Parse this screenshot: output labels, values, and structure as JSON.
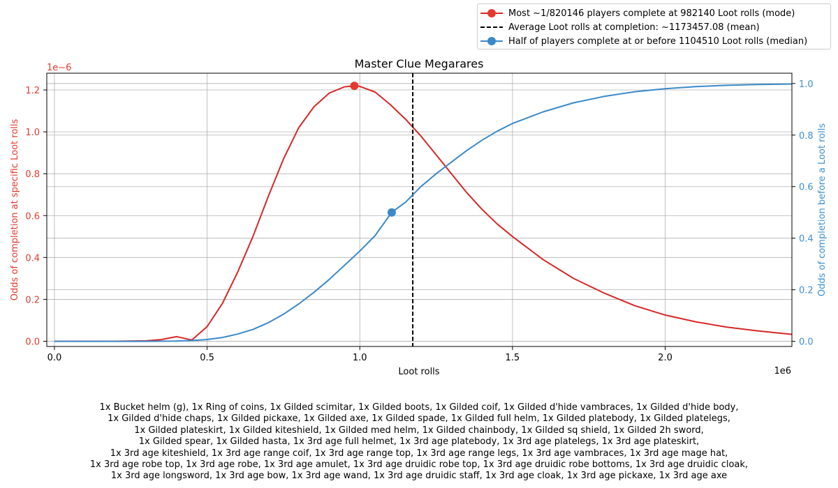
{
  "chart_data": {
    "type": "line",
    "title": "Master Clue Megarares",
    "xlabel": "Loot rolls",
    "x_offset_text": "1e6",
    "xlim": [
      -25000,
      2415000
    ],
    "x_ticks": [
      0,
      500000,
      1000000,
      1500000,
      2000000
    ],
    "x_tick_labels": [
      "0.0",
      "0.5",
      "1.0",
      "1.5",
      "2.0"
    ],
    "left_axis": {
      "label": "Odds of completion at specific Loot rolls",
      "offset_text": "1e−6",
      "color": "#e23b2e",
      "ylim": [
        -2.5e-08,
        1.28e-06
      ],
      "ticks": [
        0,
        2e-07,
        4e-07,
        6e-07,
        8e-07,
        1e-06,
        1.2e-06
      ],
      "tick_labels": [
        "0.0",
        "0.2",
        "0.4",
        "0.6",
        "0.8",
        "1.0",
        "1.2"
      ]
    },
    "right_axis": {
      "label": "Odds of completion before a Loot rolls",
      "color": "#3f8fd0",
      "ylim": [
        -0.02,
        1.04
      ],
      "ticks": [
        0,
        0.2,
        0.4,
        0.6,
        0.8,
        1.0
      ],
      "tick_labels": [
        "0.0",
        "0.2",
        "0.4",
        "0.6",
        "0.8",
        "1.0"
      ]
    },
    "grid": true,
    "legend_position": "above-right",
    "series": [
      {
        "name": "Most ~1/820146 players complete at 982140 Loot rolls (mode)",
        "axis": "left",
        "color": "#d62728",
        "x": [
          0,
          200000,
          300000,
          350000,
          400000,
          450000,
          500000,
          550000,
          600000,
          650000,
          700000,
          750000,
          800000,
          850000,
          900000,
          950000,
          982140,
          1000000,
          1050000,
          1100000,
          1150000,
          1200000,
          1250000,
          1300000,
          1350000,
          1400000,
          1450000,
          1500000,
          1600000,
          1700000,
          1800000,
          1900000,
          2000000,
          2100000,
          2200000,
          2300000,
          2415000
        ],
        "y": [
          0,
          0,
          2e-09,
          8e-09,
          2.2e-08,
          6e-09,
          7e-08,
          1.8e-07,
          3.3e-07,
          5e-07,
          6.9e-07,
          8.7e-07,
          1.02e-06,
          1.12e-06,
          1.185e-06,
          1.215e-06,
          1.2195e-06,
          1.217e-06,
          1.19e-06,
          1.13e-06,
          1.06e-06,
          9.8e-07,
          8.9e-07,
          8e-07,
          7.1e-07,
          6.3e-07,
          5.6e-07,
          5e-07,
          3.9e-07,
          3e-07,
          2.3e-07,
          1.7e-07,
          1.25e-07,
          9.3e-08,
          6.8e-08,
          5e-08,
          3.3e-08
        ]
      },
      {
        "name": "Average Loot rolls at completion: ~1173457.08 (mean)",
        "type": "vline",
        "axis": "left",
        "color": "#000000",
        "style": "dashed",
        "x": 1173457.08
      },
      {
        "name": "Half of players complete at or before 1104510 Loot rolls (median)",
        "axis": "right",
        "color": "#3a89c9",
        "x": [
          0,
          300000,
          400000,
          450000,
          500000,
          550000,
          600000,
          650000,
          700000,
          750000,
          800000,
          850000,
          900000,
          950000,
          1000000,
          1050000,
          1104510,
          1150000,
          1200000,
          1250000,
          1300000,
          1350000,
          1400000,
          1450000,
          1500000,
          1600000,
          1700000,
          1800000,
          1900000,
          2000000,
          2100000,
          2200000,
          2300000,
          2415000
        ],
        "y": [
          0,
          0,
          0.001,
          0.003,
          0.007,
          0.015,
          0.028,
          0.046,
          0.072,
          0.105,
          0.145,
          0.19,
          0.24,
          0.295,
          0.35,
          0.41,
          0.5,
          0.54,
          0.6,
          0.65,
          0.695,
          0.74,
          0.78,
          0.815,
          0.845,
          0.89,
          0.925,
          0.95,
          0.968,
          0.98,
          0.988,
          0.993,
          0.996,
          0.998
        ]
      }
    ],
    "markers": [
      {
        "series": 0,
        "x": 982140,
        "y": 1.2195e-06,
        "axis": "left",
        "color": "#e23b2e"
      },
      {
        "series": 2,
        "x": 1104510,
        "y": 0.5,
        "axis": "right",
        "color": "#3a89c9"
      }
    ]
  },
  "caption_lines": [
    "1x Bucket helm (g), 1x Ring of coins, 1x Gilded scimitar, 1x Gilded boots, 1x Gilded coif, 1x Gilded d'hide vambraces, 1x Gilded d'hide body,",
    "1x Gilded d'hide chaps, 1x Gilded pickaxe, 1x Gilded axe, 1x Gilded spade, 1x Gilded full helm, 1x Gilded platebody, 1x Gilded platelegs,",
    "1x Gilded plateskirt, 1x Gilded kiteshield, 1x Gilded med helm, 1x Gilded chainbody, 1x Gilded sq shield, 1x Gilded 2h sword,",
    "1x Gilded spear, 1x Gilded hasta, 1x 3rd age full helmet, 1x 3rd age platebody, 1x 3rd age platelegs, 1x 3rd age plateskirt,",
    "1x 3rd age kiteshield, 1x 3rd age range coif, 1x 3rd age range top, 1x 3rd age range legs, 1x 3rd age vambraces, 1x 3rd age mage hat,",
    "1x 3rd age robe top, 1x 3rd age robe, 1x 3rd age amulet, 1x 3rd age druidic robe top, 1x 3rd age druidic robe bottoms, 1x 3rd age druidic cloak,",
    "1x 3rd age longsword, 1x 3rd age bow, 1x 3rd age wand, 1x 3rd age druidic staff, 1x 3rd age cloak, 1x 3rd age pickaxe, 1x 3rd age axe"
  ]
}
